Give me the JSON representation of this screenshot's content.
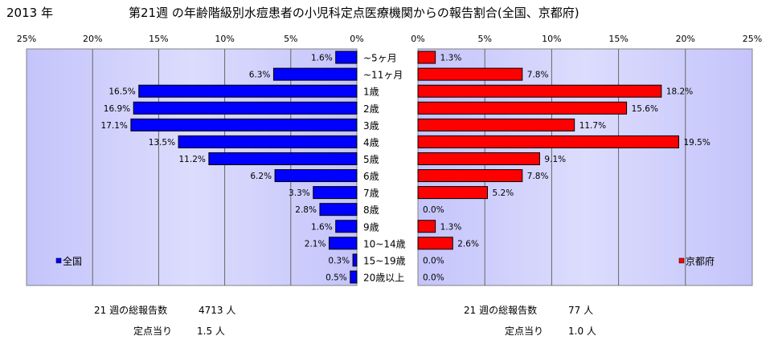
{
  "header": {
    "year": "2013 年",
    "title": "第21週 の年齢階級別水痘患者の小児科定点医療機関からの報告割合(全国、京都府)"
  },
  "chart_data": {
    "type": "bar",
    "orientation": "horizontal",
    "categories": [
      "~5ヶ月",
      "~11ヶ月",
      "1歳",
      "2歳",
      "3歳",
      "4歳",
      "5歳",
      "6歳",
      "7歳",
      "8歳",
      "9歳",
      "10~14歳",
      "15~19歳",
      "20歳以上"
    ],
    "xlim": [
      0,
      25
    ],
    "ticks": [
      "0%",
      "5%",
      "10%",
      "15%",
      "20%",
      "25%"
    ],
    "grid": true,
    "series": [
      {
        "name": "全国",
        "color": "#0000ff",
        "panel": "left",
        "values": [
          1.6,
          6.3,
          16.5,
          16.9,
          17.1,
          13.5,
          11.2,
          6.2,
          3.3,
          2.8,
          1.6,
          2.1,
          0.3,
          0.5
        ],
        "labels": [
          "1.6%",
          "6.3%",
          "16.5%",
          "16.9%",
          "17.1%",
          "13.5%",
          "11.2%",
          "6.2%",
          "3.3%",
          "2.8%",
          "1.6%",
          "2.1%",
          "0.3%",
          "0.5%"
        ],
        "legend_position": "bottom-left"
      },
      {
        "name": "京都府",
        "color": "#ff0000",
        "panel": "right",
        "values": [
          1.3,
          7.8,
          18.2,
          15.6,
          11.7,
          19.5,
          9.1,
          7.8,
          5.2,
          0.0,
          1.3,
          2.6,
          0.0,
          0.0
        ],
        "labels": [
          "1.3%",
          "7.8%",
          "18.2%",
          "15.6%",
          "11.7%",
          "19.5%",
          "9.1%",
          "7.8%",
          "5.2%",
          "0.0%",
          "1.3%",
          "2.6%",
          "0.0%",
          "0.0%"
        ],
        "legend_position": "bottom-right"
      }
    ],
    "plot_background": "#ccccff"
  },
  "summary": {
    "national": {
      "total_label": "21 週の総報告数",
      "total_value": "4713 人",
      "per_label": "定点当り",
      "per_value": "1.5 人"
    },
    "kyoto": {
      "total_label": "21 週の総報告数",
      "total_value": "77 人",
      "per_label": "定点当り",
      "per_value": "1.0 人"
    }
  }
}
